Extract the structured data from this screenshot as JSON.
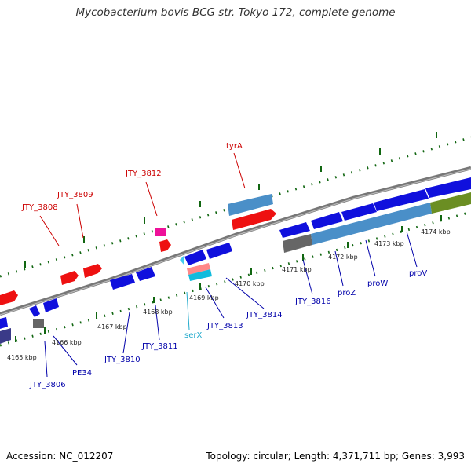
{
  "title": "Mycobacterium bovis BCG str. Tokyo 172, complete genome",
  "footer": {
    "accession": "Accession: NC_012207",
    "summary": "Topology: circular; Length: 4,371,711 bp; Genes: 3,993"
  },
  "ticks": [
    "4165 kbp",
    "4166 kbp",
    "4167 kbp",
    "4168 kbp",
    "4169 kbp",
    "4170 kbp",
    "4171 kbp",
    "4172 kbp",
    "4173 kbp",
    "4174 kbp"
  ],
  "genes_top": [
    "JTY_3808",
    "JTY_3809",
    "JTY_3812",
    "tyrA"
  ],
  "genes_bottom": [
    "JTY_3806",
    "PE34",
    "JTY_3810",
    "JTY_3811",
    "serX",
    "JTY_3813",
    "JTY_3814",
    "JTY_3816",
    "proZ",
    "proW",
    "proV"
  ],
  "colors": {
    "top_label": "#cc0000",
    "bottom_label": "#0000aa",
    "trna_label": "#22aacc",
    "gene_blue": "#1010dd",
    "gene_red": "#ee1111",
    "ticks": "#116611"
  }
}
